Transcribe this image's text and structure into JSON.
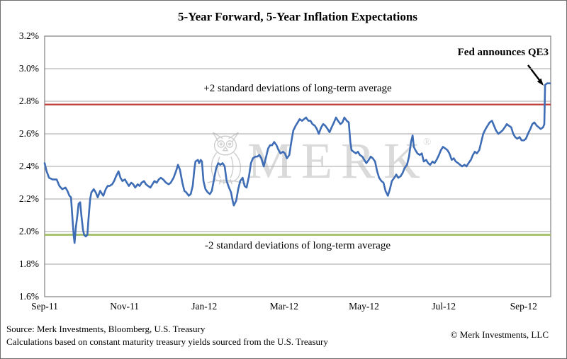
{
  "title": "5-Year Forward, 5-Year Inflation Expectations",
  "annotations": {
    "qe3": "Fed announces QE3",
    "upper_band": "+2 standard deviations of long-term average",
    "lower_band": "-2 standard deviations of long-term average"
  },
  "watermark": {
    "text": "MERK",
    "registered_mark": "®"
  },
  "footer": {
    "source_line1": "Source: Merk Investments, Bloomberg, U.S. Treasury",
    "source_line2": "Calculations based on constant maturity treasury yields sourced from the U.S. Treasury",
    "copyright": "© Merk Investments, LLC"
  },
  "colors": {
    "series": "#3E6DB5",
    "upper_band": "#C0413C",
    "lower_band": "#9BBB59",
    "gridline": "#A6A6A6",
    "frame": "#808080",
    "watermark": "#DADADA",
    "owl": "#CCCCCC",
    "arrow": "#000000"
  },
  "chart_data": {
    "type": "line",
    "title": "5-Year Forward, 5-Year Inflation Expectations",
    "xlabel": "",
    "ylabel": "",
    "x_unit": "months since Sep-2011",
    "xlim": [
      0,
      12.68
    ],
    "ylim": [
      1.6,
      3.2
    ],
    "grid": "horizontal",
    "x_tick_labels": [
      "Sep-11",
      "Nov-11",
      "Jan-12",
      "Mar-12",
      "May-12",
      "Jul-12",
      "Sep-12"
    ],
    "x_tick_values": [
      0,
      2,
      4,
      6,
      8,
      10,
      12
    ],
    "y_tick_labels": [
      "3.2%",
      "3.0%",
      "2.8%",
      "2.6%",
      "2.4%",
      "2.2%",
      "2.0%",
      "1.8%",
      "1.6%"
    ],
    "y_tick_values": [
      3.2,
      3.0,
      2.8,
      2.6,
      2.4,
      2.2,
      2.0,
      1.8,
      1.6
    ],
    "gridline_values": [
      3.0,
      2.8,
      2.6,
      2.4,
      2.2,
      2.0,
      1.8
    ],
    "upper_band_value": 2.78,
    "lower_band_value": 1.98,
    "series": [
      {
        "name": "5-year forward 5-year inflation expectation (%)",
        "points": [
          [
            0,
            2.42
          ],
          [
            0.05,
            2.37
          ],
          [
            0.11,
            2.33
          ],
          [
            0.2,
            2.32
          ],
          [
            0.3,
            2.32
          ],
          [
            0.37,
            2.28
          ],
          [
            0.44,
            2.26
          ],
          [
            0.52,
            2.27
          ],
          [
            0.57,
            2.25
          ],
          [
            0.62,
            2.22
          ],
          [
            0.66,
            2.21
          ],
          [
            0.69,
            2.1
          ],
          [
            0.73,
            1.97
          ],
          [
            0.75,
            1.93
          ],
          [
            0.78,
            2.02
          ],
          [
            0.82,
            2.1
          ],
          [
            0.85,
            2.17
          ],
          [
            0.89,
            2.18
          ],
          [
            0.92,
            2.1
          ],
          [
            0.96,
            2.01
          ],
          [
            0.99,
            1.98
          ],
          [
            1.03,
            1.97
          ],
          [
            1.07,
            1.98
          ],
          [
            1.1,
            2.08
          ],
          [
            1.14,
            2.2
          ],
          [
            1.17,
            2.24
          ],
          [
            1.23,
            2.26
          ],
          [
            1.28,
            2.24
          ],
          [
            1.33,
            2.21
          ],
          [
            1.39,
            2.25
          ],
          [
            1.44,
            2.23
          ],
          [
            1.47,
            2.22
          ],
          [
            1.53,
            2.26
          ],
          [
            1.58,
            2.28
          ],
          [
            1.63,
            2.28
          ],
          [
            1.69,
            2.29
          ],
          [
            1.74,
            2.31
          ],
          [
            1.79,
            2.34
          ],
          [
            1.85,
            2.37
          ],
          [
            1.9,
            2.33
          ],
          [
            1.95,
            2.31
          ],
          [
            2.01,
            2.32
          ],
          [
            2.06,
            2.3
          ],
          [
            2.11,
            2.28
          ],
          [
            2.17,
            2.3
          ],
          [
            2.22,
            2.29
          ],
          [
            2.27,
            2.27
          ],
          [
            2.33,
            2.29
          ],
          [
            2.38,
            2.28
          ],
          [
            2.43,
            2.3
          ],
          [
            2.49,
            2.31
          ],
          [
            2.54,
            2.29
          ],
          [
            2.59,
            2.28
          ],
          [
            2.65,
            2.27
          ],
          [
            2.7,
            2.29
          ],
          [
            2.75,
            2.31
          ],
          [
            2.81,
            2.3
          ],
          [
            2.86,
            2.32
          ],
          [
            2.91,
            2.33
          ],
          [
            2.97,
            2.32
          ],
          [
            3.04,
            2.3
          ],
          [
            3.11,
            2.29
          ],
          [
            3.16,
            2.3
          ],
          [
            3.23,
            2.33
          ],
          [
            3.29,
            2.37
          ],
          [
            3.34,
            2.41
          ],
          [
            3.39,
            2.38
          ],
          [
            3.45,
            2.3
          ],
          [
            3.5,
            2.25
          ],
          [
            3.55,
            2.24
          ],
          [
            3.61,
            2.22
          ],
          [
            3.66,
            2.23
          ],
          [
            3.71,
            2.28
          ],
          [
            3.75,
            2.38
          ],
          [
            3.78,
            2.43
          ],
          [
            3.84,
            2.44
          ],
          [
            3.87,
            2.42
          ],
          [
            3.91,
            2.44
          ],
          [
            3.94,
            2.43
          ],
          [
            3.98,
            2.31
          ],
          [
            4.03,
            2.26
          ],
          [
            4.09,
            2.24
          ],
          [
            4.14,
            2.23
          ],
          [
            4.19,
            2.25
          ],
          [
            4.25,
            2.33
          ],
          [
            4.3,
            2.39
          ],
          [
            4.35,
            2.42
          ],
          [
            4.4,
            2.41
          ],
          [
            4.46,
            2.42
          ],
          [
            4.51,
            2.4
          ],
          [
            4.56,
            2.31
          ],
          [
            4.62,
            2.27
          ],
          [
            4.67,
            2.24
          ],
          [
            4.71,
            2.19
          ],
          [
            4.74,
            2.16
          ],
          [
            4.8,
            2.19
          ],
          [
            4.85,
            2.26
          ],
          [
            4.9,
            2.31
          ],
          [
            4.96,
            2.33
          ],
          [
            5.01,
            2.28
          ],
          [
            5.06,
            2.27
          ],
          [
            5.12,
            2.34
          ],
          [
            5.17,
            2.42
          ],
          [
            5.22,
            2.45
          ],
          [
            5.28,
            2.46
          ],
          [
            5.33,
            2.46
          ],
          [
            5.38,
            2.47
          ],
          [
            5.43,
            2.45
          ],
          [
            5.49,
            2.4
          ],
          [
            5.54,
            2.45
          ],
          [
            5.6,
            2.51
          ],
          [
            5.65,
            2.53
          ],
          [
            5.7,
            2.53
          ],
          [
            5.75,
            2.55
          ],
          [
            5.81,
            2.53
          ],
          [
            5.86,
            2.5
          ],
          [
            5.91,
            2.48
          ],
          [
            5.97,
            2.49
          ],
          [
            6.02,
            2.48
          ],
          [
            6.07,
            2.45
          ],
          [
            6.13,
            2.47
          ],
          [
            6.18,
            2.55
          ],
          [
            6.23,
            2.62
          ],
          [
            6.29,
            2.65
          ],
          [
            6.34,
            2.67
          ],
          [
            6.39,
            2.69
          ],
          [
            6.45,
            2.68
          ],
          [
            6.5,
            2.69
          ],
          [
            6.55,
            2.7
          ],
          [
            6.61,
            2.68
          ],
          [
            6.66,
            2.68
          ],
          [
            6.71,
            2.66
          ],
          [
            6.77,
            2.65
          ],
          [
            6.82,
            2.63
          ],
          [
            6.87,
            2.6
          ],
          [
            6.93,
            2.64
          ],
          [
            6.98,
            2.66
          ],
          [
            7.03,
            2.65
          ],
          [
            7.09,
            2.63
          ],
          [
            7.14,
            2.61
          ],
          [
            7.19,
            2.64
          ],
          [
            7.25,
            2.67
          ],
          [
            7.3,
            2.7
          ],
          [
            7.35,
            2.68
          ],
          [
            7.41,
            2.66
          ],
          [
            7.46,
            2.67
          ],
          [
            7.51,
            2.7
          ],
          [
            7.57,
            2.68
          ],
          [
            7.62,
            2.67
          ],
          [
            7.66,
            2.55
          ],
          [
            7.69,
            2.5
          ],
          [
            7.74,
            2.49
          ],
          [
            7.8,
            2.48
          ],
          [
            7.85,
            2.49
          ],
          [
            7.9,
            2.47
          ],
          [
            7.96,
            2.46
          ],
          [
            8.01,
            2.44
          ],
          [
            8.06,
            2.42
          ],
          [
            8.12,
            2.44
          ],
          [
            8.17,
            2.46
          ],
          [
            8.22,
            2.45
          ],
          [
            8.28,
            2.43
          ],
          [
            8.33,
            2.37
          ],
          [
            8.38,
            2.33
          ],
          [
            8.44,
            2.31
          ],
          [
            8.49,
            2.3
          ],
          [
            8.54,
            2.25
          ],
          [
            8.6,
            2.22
          ],
          [
            8.65,
            2.26
          ],
          [
            8.7,
            2.31
          ],
          [
            8.76,
            2.33
          ],
          [
            8.81,
            2.35
          ],
          [
            8.86,
            2.33
          ],
          [
            8.92,
            2.34
          ],
          [
            8.97,
            2.36
          ],
          [
            9.02,
            2.39
          ],
          [
            9.08,
            2.41
          ],
          [
            9.13,
            2.46
          ],
          [
            9.18,
            2.55
          ],
          [
            9.22,
            2.59
          ],
          [
            9.25,
            2.52
          ],
          [
            9.29,
            2.5
          ],
          [
            9.34,
            2.48
          ],
          [
            9.4,
            2.47
          ],
          [
            9.45,
            2.48
          ],
          [
            9.5,
            2.43
          ],
          [
            9.56,
            2.44
          ],
          [
            9.61,
            2.42
          ],
          [
            9.66,
            2.41
          ],
          [
            9.72,
            2.43
          ],
          [
            9.77,
            2.42
          ],
          [
            9.82,
            2.44
          ],
          [
            9.88,
            2.47
          ],
          [
            9.93,
            2.5
          ],
          [
            9.98,
            2.52
          ],
          [
            10.04,
            2.51
          ],
          [
            10.09,
            2.5
          ],
          [
            10.14,
            2.48
          ],
          [
            10.2,
            2.44
          ],
          [
            10.25,
            2.45
          ],
          [
            10.3,
            2.43
          ],
          [
            10.36,
            2.42
          ],
          [
            10.41,
            2.41
          ],
          [
            10.46,
            2.4
          ],
          [
            10.52,
            2.41
          ],
          [
            10.57,
            2.4
          ],
          [
            10.62,
            2.42
          ],
          [
            10.68,
            2.44
          ],
          [
            10.73,
            2.47
          ],
          [
            10.78,
            2.49
          ],
          [
            10.83,
            2.48
          ],
          [
            10.89,
            2.5
          ],
          [
            10.94,
            2.55
          ],
          [
            10.99,
            2.6
          ],
          [
            11.05,
            2.63
          ],
          [
            11.1,
            2.65
          ],
          [
            11.15,
            2.67
          ],
          [
            11.21,
            2.68
          ],
          [
            11.26,
            2.65
          ],
          [
            11.31,
            2.62
          ],
          [
            11.37,
            2.6
          ],
          [
            11.42,
            2.61
          ],
          [
            11.47,
            2.62
          ],
          [
            11.53,
            2.64
          ],
          [
            11.58,
            2.66
          ],
          [
            11.63,
            2.65
          ],
          [
            11.69,
            2.64
          ],
          [
            11.74,
            2.6
          ],
          [
            11.79,
            2.58
          ],
          [
            11.84,
            2.57
          ],
          [
            11.9,
            2.58
          ],
          [
            11.95,
            2.56
          ],
          [
            12.01,
            2.56
          ],
          [
            12.06,
            2.57
          ],
          [
            12.11,
            2.6
          ],
          [
            12.17,
            2.63
          ],
          [
            12.22,
            2.66
          ],
          [
            12.27,
            2.67
          ],
          [
            12.33,
            2.65
          ],
          [
            12.38,
            2.64
          ],
          [
            12.43,
            2.63
          ],
          [
            12.49,
            2.64
          ],
          [
            12.52,
            2.66
          ],
          [
            12.54,
            2.9
          ],
          [
            12.59,
            2.91
          ],
          [
            12.66,
            2.91
          ]
        ]
      }
    ],
    "legend": "none"
  }
}
